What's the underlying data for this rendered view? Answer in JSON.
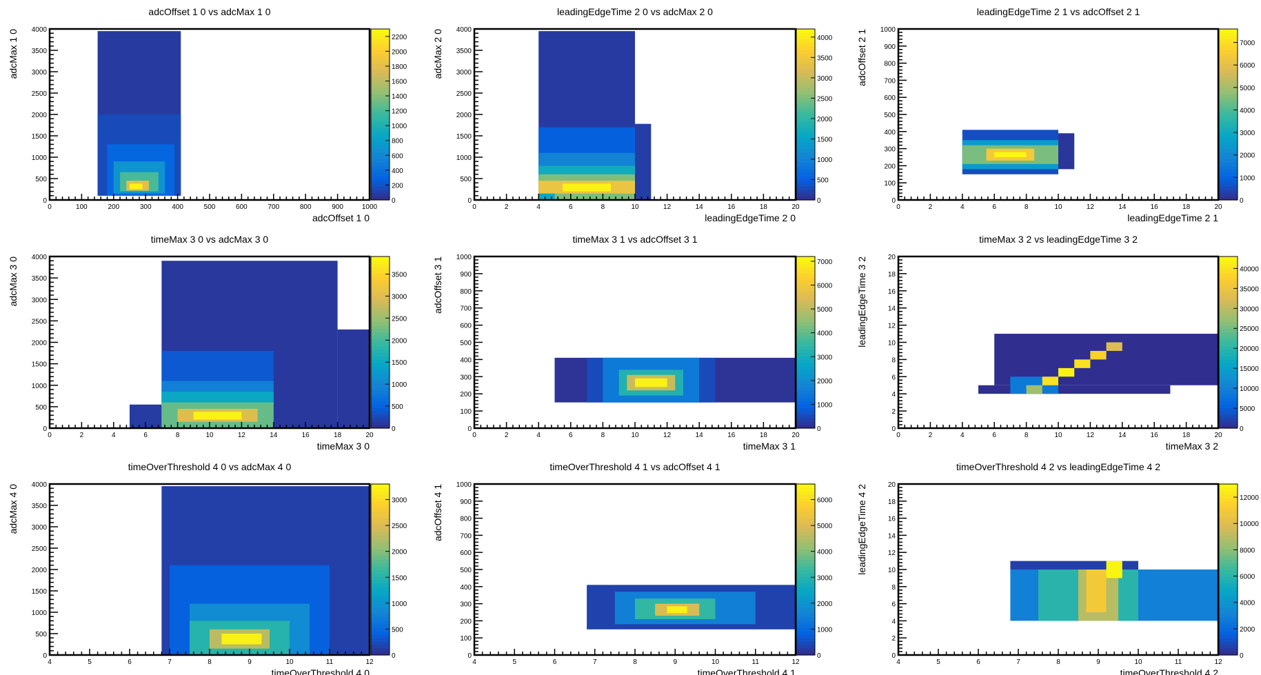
{
  "panels": [
    {
      "id": "p1",
      "title": "adcOffset 1 0 vs adcMax 1 0",
      "xlabel": "adcOffset 1 0",
      "ylabel": "adcMax 1 0",
      "xticks": [
        0,
        100,
        200,
        300,
        400,
        500,
        600,
        700,
        800,
        900,
        1000
      ],
      "yticks": [
        0,
        500,
        1000,
        1500,
        2000,
        2500,
        3000,
        3500,
        4000
      ],
      "zticks": [
        0,
        200,
        400,
        600,
        800,
        1000,
        1200,
        1400,
        1600,
        1800,
        2000,
        2200
      ]
    },
    {
      "id": "p2",
      "title": "leadingEdgeTime 2 0 vs adcMax 2 0",
      "xlabel": "leadingEdgeTime 2 0",
      "ylabel": "adcMax 2 0",
      "xticks": [
        0,
        2,
        4,
        6,
        8,
        10,
        12,
        14,
        16,
        18,
        20
      ],
      "yticks": [
        0,
        500,
        1000,
        1500,
        2000,
        2500,
        3000,
        3500,
        4000
      ],
      "zticks": [
        0,
        500,
        1000,
        1500,
        2000,
        2500,
        3000,
        3500,
        4000
      ]
    },
    {
      "id": "p3",
      "title": "leadingEdgeTime 2 1 vs adcOffset 2 1",
      "xlabel": "leadingEdgeTime 2 1",
      "ylabel": "adcOffset 2 1",
      "xticks": [
        0,
        2,
        4,
        6,
        8,
        10,
        12,
        14,
        16,
        18,
        20
      ],
      "yticks": [
        0,
        100,
        200,
        300,
        400,
        500,
        600,
        700,
        800,
        900,
        1000
      ],
      "zticks": [
        0,
        1000,
        2000,
        3000,
        4000,
        5000,
        6000,
        7000
      ]
    },
    {
      "id": "p4",
      "title": "timeMax 3 0 vs adcMax 3 0",
      "xlabel": "timeMax 3 0",
      "ylabel": "adcMax 3 0",
      "xticks": [
        0,
        2,
        4,
        6,
        8,
        10,
        12,
        14,
        16,
        18,
        20
      ],
      "yticks": [
        0,
        500,
        1000,
        1500,
        2000,
        2500,
        3000,
        3500,
        4000
      ],
      "zticks": [
        0,
        500,
        1000,
        1500,
        2000,
        2500,
        3000,
        3500
      ]
    },
    {
      "id": "p5",
      "title": "timeMax 3 1 vs adcOffset 3 1",
      "xlabel": "timeMax 3 1",
      "ylabel": "adcOffset 3 1",
      "xticks": [
        0,
        2,
        4,
        6,
        8,
        10,
        12,
        14,
        16,
        18,
        20
      ],
      "yticks": [
        0,
        100,
        200,
        300,
        400,
        500,
        600,
        700,
        800,
        900,
        1000
      ],
      "zticks": [
        0,
        1000,
        2000,
        3000,
        4000,
        5000,
        6000,
        7000
      ]
    },
    {
      "id": "p6",
      "title": "timeMax 3 2 vs leadingEdgeTime 3 2",
      "xlabel": "timeMax 3 2",
      "ylabel": "leadingEdgeTime 3 2",
      "xticks": [
        0,
        2,
        4,
        6,
        8,
        10,
        12,
        14,
        16,
        18,
        20
      ],
      "yticks": [
        0,
        2,
        4,
        6,
        8,
        10,
        12,
        14,
        16,
        18,
        20
      ],
      "zticks": [
        0,
        5000,
        10000,
        15000,
        20000,
        25000,
        30000,
        35000,
        40000
      ]
    },
    {
      "id": "p7",
      "title": "timeOverThreshold 4 0 vs adcMax 4 0",
      "xlabel": "timeOverThreshold 4 0",
      "ylabel": "adcMax 4 0",
      "xticks": [
        4,
        5,
        6,
        7,
        8,
        9,
        10,
        11,
        12
      ],
      "yticks": [
        0,
        500,
        1000,
        1500,
        2000,
        2500,
        3000,
        3500,
        4000
      ],
      "zticks": [
        0,
        500,
        1000,
        1500,
        2000,
        2500,
        3000
      ]
    },
    {
      "id": "p8",
      "title": "timeOverThreshold 4 1 vs adcOffset 4 1",
      "xlabel": "timeOverThreshold 4 1",
      "ylabel": "adcOffset 4 1",
      "xticks": [
        4,
        5,
        6,
        7,
        8,
        9,
        10,
        11,
        12
      ],
      "yticks": [
        0,
        100,
        200,
        300,
        400,
        500,
        600,
        700,
        800,
        900,
        1000
      ],
      "zticks": [
        0,
        1000,
        2000,
        3000,
        4000,
        5000,
        6000
      ]
    },
    {
      "id": "p9",
      "title": "timeOverThreshold 4 2 vs leadingEdgeTime 4 2",
      "xlabel": "timeOverThreshold 4 2",
      "ylabel": "leadingEdgeTime 4 2",
      "xticks": [
        4,
        5,
        6,
        7,
        8,
        9,
        10,
        11,
        12
      ],
      "yticks": [
        0,
        2,
        4,
        6,
        8,
        10,
        12,
        14,
        16,
        18,
        20
      ],
      "zticks": [
        0,
        2000,
        4000,
        6000,
        8000,
        10000,
        12000
      ]
    }
  ],
  "chart_data": [
    {
      "type": "heatmap",
      "title": "adcOffset 1 0 vs adcMax 1 0",
      "xlabel": "adcOffset 1 0",
      "ylabel": "adcMax 1 0",
      "xlim": [
        0,
        1000
      ],
      "ylim": [
        0,
        4000
      ],
      "zlim": [
        0,
        2300
      ],
      "cells": [
        [
          150,
          410,
          100,
          3950,
          80
        ],
        [
          150,
          410,
          100,
          2000,
          160
        ],
        [
          180,
          390,
          100,
          1300,
          320
        ],
        [
          200,
          360,
          150,
          900,
          700
        ],
        [
          220,
          340,
          200,
          650,
          1200
        ],
        [
          240,
          310,
          220,
          450,
          1800
        ],
        [
          250,
          290,
          250,
          380,
          2250
        ]
      ]
    },
    {
      "type": "heatmap",
      "title": "leadingEdgeTime 2 0 vs adcMax 2 0",
      "xlabel": "leadingEdgeTime 2 0",
      "ylabel": "adcMax 2 0",
      "xlim": [
        0,
        20
      ],
      "ylim": [
        0,
        4000
      ],
      "zlim": [
        0,
        4200
      ],
      "cells": [
        [
          4,
          10,
          0,
          3950,
          150
        ],
        [
          4,
          10,
          0,
          1700,
          500
        ],
        [
          4,
          10,
          0,
          1100,
          1000
        ],
        [
          4,
          10,
          0,
          800,
          1700
        ],
        [
          4,
          10,
          0,
          600,
          2500
        ],
        [
          4,
          10,
          150,
          450,
          3400
        ],
        [
          5.5,
          8.5,
          200,
          380,
          4100
        ],
        [
          4,
          5,
          0,
          150,
          1600
        ],
        [
          10,
          11,
          0,
          1780,
          180
        ]
      ]
    },
    {
      "type": "heatmap",
      "title": "leadingEdgeTime 2 1 vs adcOffset 2 1",
      "xlabel": "leadingEdgeTime 2 1",
      "ylabel": "adcOffset 2 1",
      "xlim": [
        0,
        20
      ],
      "ylim": [
        0,
        1000
      ],
      "zlim": [
        0,
        7600
      ],
      "cells": [
        [
          4,
          10,
          150,
          410,
          600
        ],
        [
          4,
          10,
          180,
          350,
          2500
        ],
        [
          4,
          10,
          210,
          320,
          4500
        ],
        [
          5.5,
          8.5,
          230,
          300,
          6400
        ],
        [
          6,
          8,
          250,
          280,
          7500
        ],
        [
          10,
          11,
          180,
          390,
          200
        ]
      ]
    },
    {
      "type": "heatmap",
      "title": "timeMax 3 0 vs adcMax 3 0",
      "xlabel": "timeMax 3 0",
      "ylabel": "adcMax 3 0",
      "xlim": [
        0,
        20
      ],
      "ylim": [
        0,
        4000
      ],
      "zlim": [
        0,
        3900
      ],
      "cells": [
        [
          7,
          18,
          0,
          3900,
          120
        ],
        [
          18,
          20,
          0,
          2300,
          120
        ],
        [
          5,
          7,
          0,
          550,
          150
        ],
        [
          7,
          14,
          0,
          1800,
          400
        ],
        [
          7,
          14,
          0,
          1100,
          900
        ],
        [
          7,
          14,
          0,
          850,
          1500
        ],
        [
          7,
          14,
          0,
          600,
          2200
        ],
        [
          8,
          13,
          150,
          450,
          3000
        ],
        [
          9,
          12,
          200,
          380,
          3800
        ]
      ]
    },
    {
      "type": "heatmap",
      "title": "timeMax 3 1 vs adcOffset 3 1",
      "xlabel": "timeMax 3 1",
      "ylabel": "adcOffset 3 1",
      "xlim": [
        0,
        20
      ],
      "ylim": [
        0,
        1000
      ],
      "zlim": [
        0,
        7200
      ],
      "cells": [
        [
          5,
          20,
          150,
          410,
          150
        ],
        [
          7,
          15,
          150,
          410,
          500
        ],
        [
          8,
          14,
          150,
          410,
          1500
        ],
        [
          9,
          13,
          190,
          340,
          3200
        ],
        [
          9.5,
          12.5,
          220,
          310,
          5200
        ],
        [
          10,
          12,
          240,
          290,
          7000
        ]
      ]
    },
    {
      "type": "heatmap",
      "title": "timeMax 3 2 vs leadingEdgeTime 3 2",
      "xlabel": "timeMax 3 2",
      "ylabel": "leadingEdgeTime 3 2",
      "xlim": [
        0,
        20
      ],
      "ylim": [
        0,
        20
      ],
      "zlim": [
        0,
        43000
      ],
      "cells": [
        [
          5,
          17,
          4,
          5,
          500
        ],
        [
          6,
          20,
          5,
          11,
          500
        ],
        [
          7,
          10,
          4,
          6,
          9000
        ],
        [
          8,
          9,
          4,
          5,
          28000
        ],
        [
          9,
          10,
          5,
          6,
          40000
        ],
        [
          10,
          11,
          6,
          7,
          42000
        ],
        [
          11,
          12,
          7,
          8,
          40000
        ],
        [
          12,
          13,
          8,
          9,
          38000
        ],
        [
          13,
          14,
          9,
          10,
          33000
        ]
      ]
    },
    {
      "type": "heatmap",
      "title": "timeOverThreshold 4 0 vs adcMax 4 0",
      "xlabel": "timeOverThreshold 4 0",
      "ylabel": "adcMax 4 0",
      "xlim": [
        4,
        12
      ],
      "ylim": [
        0,
        4000
      ],
      "zlim": [
        0,
        3300
      ],
      "cells": [
        [
          6.8,
          12,
          0,
          3950,
          150
        ],
        [
          7,
          11,
          0,
          2100,
          400
        ],
        [
          7.5,
          10.5,
          0,
          1200,
          900
        ],
        [
          7.5,
          10,
          0,
          800,
          1500
        ],
        [
          8,
          9.5,
          150,
          600,
          2300
        ],
        [
          8.3,
          9.3,
          250,
          500,
          3200
        ]
      ]
    },
    {
      "type": "heatmap",
      "title": "timeOverThreshold 4 1 vs adcOffset 4 1",
      "xlabel": "timeOverThreshold 4 1",
      "ylabel": "adcOffset 4 1",
      "xlim": [
        4,
        12
      ],
      "ylim": [
        0,
        1000
      ],
      "zlim": [
        0,
        6600
      ],
      "cells": [
        [
          6.8,
          12,
          150,
          410,
          350
        ],
        [
          7.5,
          11,
          180,
          370,
          1500
        ],
        [
          8,
          10,
          210,
          330,
          3200
        ],
        [
          8.5,
          9.6,
          230,
          300,
          5000
        ],
        [
          8.8,
          9.3,
          245,
          285,
          6400
        ]
      ]
    },
    {
      "type": "heatmap",
      "title": "timeOverThreshold 4 2 vs leadingEdgeTime 4 2",
      "xlabel": "timeOverThreshold 4 2",
      "ylabel": "leadingEdgeTime 4 2",
      "xlim": [
        4,
        12
      ],
      "ylim": [
        0,
        20
      ],
      "zlim": [
        0,
        13000
      ],
      "cells": [
        [
          6.8,
          10,
          10,
          11,
          600
        ],
        [
          6.8,
          12,
          4,
          10,
          3000
        ],
        [
          7.5,
          10,
          4,
          10,
          6000
        ],
        [
          8.5,
          9.5,
          4,
          10,
          9000
        ],
        [
          8.7,
          9.2,
          5,
          10,
          11000
        ],
        [
          9.2,
          9.6,
          9,
          11,
          12800
        ]
      ]
    }
  ]
}
